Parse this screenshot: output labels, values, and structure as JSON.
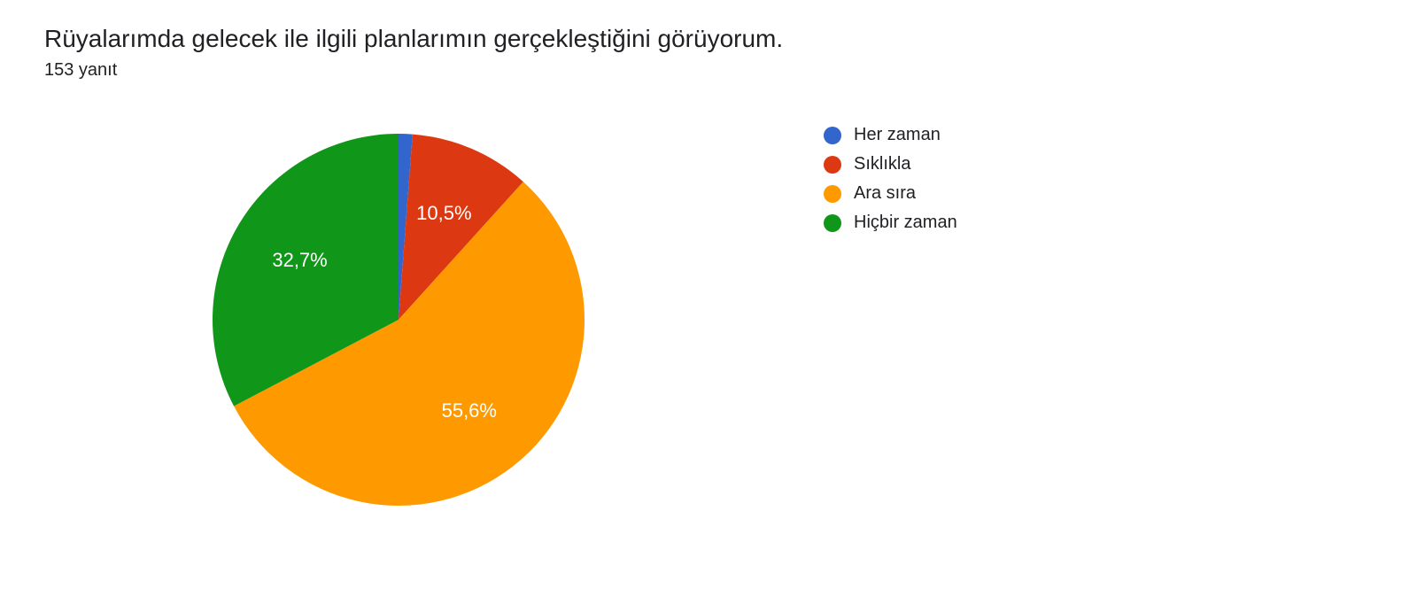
{
  "title": "Rüyalarımda gelecek ile ilgili planlarımın gerçekleştiğini görüyorum.",
  "subtitle": "153 yanıt",
  "chart": {
    "type": "pie",
    "background_color": "#ffffff",
    "radius": 210,
    "title_fontsize": 28,
    "subtitle_fontsize": 20,
    "label_fontsize": 22,
    "label_color": "#ffffff",
    "legend_fontsize": 20,
    "slices": [
      {
        "label": "Her zaman",
        "value": 1.2,
        "color": "#3366cc",
        "show_label": false,
        "display": ""
      },
      {
        "label": "Sıklıkla",
        "value": 10.5,
        "color": "#dc3912",
        "show_label": true,
        "display": "10,5%"
      },
      {
        "label": "Ara sıra",
        "value": 55.6,
        "color": "#ff9900",
        "show_label": true,
        "display": "55,6%"
      },
      {
        "label": "Hiçbir zaman",
        "value": 32.7,
        "color": "#109618",
        "show_label": true,
        "display": "32,7%"
      }
    ],
    "start_angle_deg": 0
  }
}
